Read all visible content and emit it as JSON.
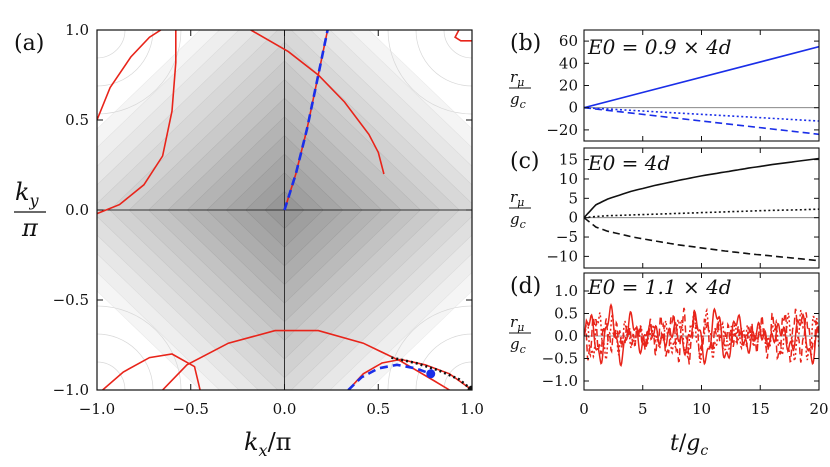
{
  "figure": {
    "panel_a_label": "(a)",
    "panel_b_label": "(b)",
    "panel_c_label": "(c)",
    "panel_d_label": "(d)",
    "ky_num": "k",
    "ky_sub": "y",
    "ky_den": "π",
    "kx_label_k": "k",
    "kx_label_sub": "x",
    "kx_label_rest": "/π",
    "t_label_t": "t",
    "t_label_rest": "/",
    "t_label_g": "g",
    "t_label_sub": "c",
    "r_num": "r",
    "r_sub": "μ",
    "g_den": "g",
    "g_sub": "c"
  },
  "chart_data": [
    {
      "id": "a",
      "type": "scatter",
      "title": "",
      "xlabel": "kx/π",
      "ylabel": "ky/π",
      "xlim": [
        -1.0,
        1.0
      ],
      "ylim": [
        -1.0,
        1.0
      ],
      "xticks": [
        -1.0,
        -0.5,
        0.0,
        0.5,
        1.0
      ],
      "yticks": [
        -1.0,
        -0.5,
        0.0,
        0.5,
        1.0
      ],
      "xtick_labels": [
        "−1.0",
        "−0.5",
        "0.0",
        "0.5",
        "1.0"
      ],
      "ytick_labels": [
        "−1.0",
        "−0.5",
        "0.0",
        "0.5",
        "1.0"
      ],
      "background": "grayscale contour of band energy, darkest at center",
      "colors": {
        "red": "#e8241a",
        "blue": "#1a2ee8",
        "black": "#111111",
        "axes": "#333333"
      },
      "series": [
        {
          "name": "trajectory-center",
          "color": "#e8241a",
          "points": [
            [
              0.0,
              0.0
            ],
            [
              0.06,
              0.2
            ],
            [
              0.12,
              0.45
            ],
            [
              0.17,
              0.7
            ],
            [
              0.2,
              0.85
            ],
            [
              0.23,
              1.0
            ]
          ]
        },
        {
          "name": "red-arc-top-left",
          "color": "#e8241a",
          "points": [
            [
              -1.0,
              0.5
            ],
            [
              -0.93,
              0.68
            ],
            [
              -0.82,
              0.85
            ],
            [
              -0.72,
              0.96
            ],
            [
              -0.66,
              1.0
            ]
          ]
        },
        {
          "name": "red-curve-left",
          "color": "#e8241a",
          "points": [
            [
              -0.58,
              1.0
            ],
            [
              -0.58,
              0.82
            ],
            [
              -0.6,
              0.55
            ],
            [
              -0.65,
              0.3
            ],
            [
              -0.75,
              0.14
            ],
            [
              -0.88,
              0.03
            ],
            [
              -1.0,
              -0.02
            ]
          ]
        },
        {
          "name": "red-arc-top-mid",
          "color": "#e8241a",
          "points": [
            [
              -0.18,
              1.0
            ],
            [
              0.02,
              0.88
            ],
            [
              0.18,
              0.75
            ],
            [
              0.32,
              0.6
            ],
            [
              0.45,
              0.42
            ],
            [
              0.5,
              0.32
            ],
            [
              0.53,
              0.2
            ]
          ]
        },
        {
          "name": "red-swirl-top-right",
          "color": "#e8241a",
          "points": [
            [
              0.93,
              1.0
            ],
            [
              0.91,
              0.96
            ],
            [
              0.94,
              0.94
            ],
            [
              1.0,
              0.94
            ]
          ]
        },
        {
          "name": "red-bottom-left",
          "color": "#e8241a",
          "points": [
            [
              -0.97,
              -1.0
            ],
            [
              -0.86,
              -0.9
            ],
            [
              -0.72,
              -0.82
            ],
            [
              -0.6,
              -0.8
            ],
            [
              -0.48,
              -0.87
            ],
            [
              -0.45,
              -1.0
            ]
          ]
        },
        {
          "name": "red-bottom-mid",
          "color": "#e8241a",
          "points": [
            [
              -0.65,
              -1.0
            ],
            [
              -0.52,
              -0.86
            ],
            [
              -0.3,
              -0.74
            ],
            [
              -0.05,
              -0.67
            ],
            [
              0.18,
              -0.67
            ],
            [
              0.42,
              -0.74
            ],
            [
              0.62,
              -0.84
            ],
            [
              0.8,
              -0.95
            ],
            [
              0.88,
              -1.0
            ]
          ]
        },
        {
          "name": "red-bottom-right",
          "color": "#e8241a",
          "points": [
            [
              0.34,
              -1.0
            ],
            [
              0.42,
              -0.91
            ],
            [
              0.52,
              -0.85
            ],
            [
              0.62,
              -0.83
            ],
            [
              0.75,
              -0.86
            ],
            [
              0.88,
              -0.91
            ],
            [
              1.0,
              -1.0
            ]
          ]
        }
      ],
      "dashed_lines": [
        {
          "name": "blue-dashed-center",
          "color": "#1a2ee8",
          "points": [
            [
              0.0,
              0.0
            ],
            [
              0.06,
              0.2
            ],
            [
              0.12,
              0.45
            ],
            [
              0.17,
              0.7
            ],
            [
              0.2,
              0.85
            ],
            [
              0.23,
              1.0
            ]
          ]
        },
        {
          "name": "blue-dashed-bottom",
          "color": "#1a2ee8",
          "points": [
            [
              0.34,
              -1.0
            ],
            [
              0.41,
              -0.93
            ],
            [
              0.5,
              -0.88
            ],
            [
              0.6,
              -0.86
            ],
            [
              0.7,
              -0.88
            ],
            [
              0.78,
              -0.91
            ]
          ]
        },
        {
          "name": "black-dotted-bottom",
          "color": "#111111",
          "points": [
            [
              0.57,
              -0.82
            ],
            [
              0.7,
              -0.85
            ],
            [
              0.82,
              -0.89
            ],
            [
              0.93,
              -0.94
            ],
            [
              1.0,
              -1.0
            ]
          ]
        }
      ],
      "markers": [
        {
          "name": "blue-dot",
          "color": "#1a2ee8",
          "x": 0.78,
          "y": -0.91
        },
        {
          "name": "black-dot",
          "color": "#111111",
          "x": 1.0,
          "y": -1.0
        }
      ]
    },
    {
      "id": "b",
      "type": "line",
      "title": "E0 = 0.9 × 4d",
      "ylabel": "rμ/gc",
      "xlim": [
        0,
        20
      ],
      "ylim": [
        -30,
        70
      ],
      "yticks": [
        -20,
        0,
        20,
        40,
        60
      ],
      "ytick_labels": [
        "−20",
        "0",
        "20",
        "40",
        "60"
      ],
      "series": [
        {
          "name": "solid",
          "style": "solid",
          "color": "#1a2ee8",
          "x": [
            0,
            20
          ],
          "y": [
            0,
            55
          ]
        },
        {
          "name": "dotted",
          "style": "dotted",
          "color": "#1a2ee8",
          "x": [
            0,
            20
          ],
          "y": [
            0,
            -12
          ]
        },
        {
          "name": "dashed",
          "style": "dashed",
          "color": "#1a2ee8",
          "x": [
            0,
            20
          ],
          "y": [
            0,
            -24
          ]
        }
      ]
    },
    {
      "id": "c",
      "type": "line",
      "title": "E0 = 4d",
      "ylabel": "rμ/gc",
      "xlim": [
        0,
        20
      ],
      "ylim": [
        -13,
        18
      ],
      "yticks": [
        -10,
        -5,
        0,
        5,
        10,
        15
      ],
      "ytick_labels": [
        "−10",
        "−5",
        "0",
        "5",
        "10",
        "15"
      ],
      "series": [
        {
          "name": "solid",
          "style": "solid",
          "color": "#111111",
          "x": [
            0,
            1,
            2,
            4,
            6,
            8,
            10,
            12,
            14,
            16,
            18,
            20
          ],
          "y": [
            0,
            3.3,
            4.8,
            6.8,
            8.3,
            9.6,
            10.8,
            11.8,
            12.8,
            13.7,
            14.5,
            15.3
          ]
        },
        {
          "name": "dotted",
          "style": "dotted",
          "color": "#111111",
          "x": [
            0,
            1,
            2,
            4,
            6,
            8,
            10,
            12,
            14,
            16,
            18,
            20
          ],
          "y": [
            0,
            0.3,
            0.5,
            0.7,
            0.9,
            1.1,
            1.3,
            1.5,
            1.7,
            1.9,
            2.0,
            2.2
          ]
        },
        {
          "name": "dashed",
          "style": "dashed",
          "color": "#111111",
          "x": [
            0,
            1,
            2,
            4,
            6,
            8,
            10,
            12,
            14,
            16,
            18,
            20
          ],
          "y": [
            0,
            -2.4,
            -3.5,
            -4.9,
            -6.0,
            -7.0,
            -7.8,
            -8.6,
            -9.3,
            -9.9,
            -10.5,
            -11.1
          ]
        }
      ]
    },
    {
      "id": "d",
      "type": "line",
      "title": "E0 = 1.1 × 4d",
      "ylabel": "rμ/gc",
      "xlim": [
        0,
        20
      ],
      "xticks": [
        0,
        5,
        10,
        15,
        20
      ],
      "xtick_labels": [
        "0",
        "5",
        "10",
        "15",
        "20"
      ],
      "xlabel": "t/gc",
      "ylim": [
        -1.2,
        1.4
      ],
      "yticks": [
        -1.0,
        -0.5,
        0.0,
        0.5,
        1.0
      ],
      "ytick_labels": [
        "−1.0",
        "−0.5",
        "0.0",
        "0.5",
        "1.0"
      ],
      "series": [
        {
          "name": "solid",
          "style": "solid",
          "color": "#e8241a",
          "period": 1.8,
          "amplitude": 0.55,
          "phase": 0.0
        },
        {
          "name": "dotted",
          "style": "dotted",
          "color": "#e8241a",
          "period": 1.15,
          "amplitude": 0.45,
          "phase": 1.0
        },
        {
          "name": "dashed",
          "style": "dashed",
          "color": "#e8241a",
          "period": 0.95,
          "amplitude": 0.5,
          "phase": 2.0
        }
      ]
    }
  ]
}
